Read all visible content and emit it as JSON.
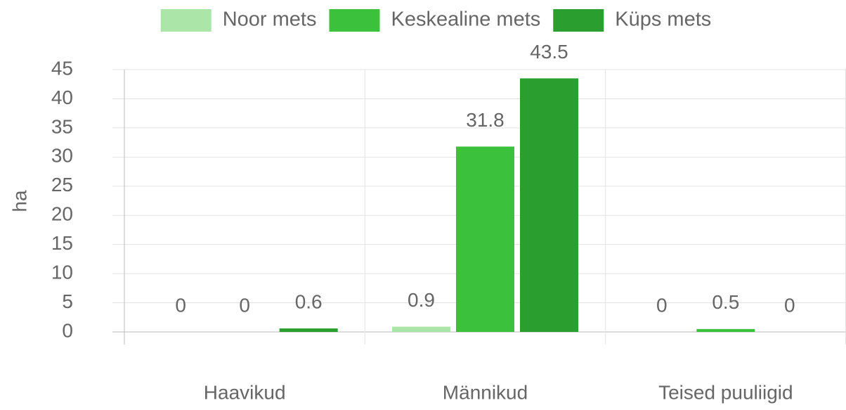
{
  "chart_data": {
    "type": "bar",
    "y_label": "ha",
    "categories": [
      "Haavikud",
      "Männikud",
      "Teised puuliigid"
    ],
    "series": [
      {
        "name": "Noor mets",
        "color": "#abe6a8",
        "values": [
          0,
          0.9,
          0
        ]
      },
      {
        "name": "Keskealine mets",
        "color": "#3cc13c",
        "values": [
          0,
          31.8,
          0.5
        ]
      },
      {
        "name": "Küps mets",
        "color": "#2a9e2e",
        "values": [
          0.6,
          43.5,
          0
        ]
      }
    ],
    "ylim": [
      0,
      45
    ],
    "yticks": [
      0,
      5,
      10,
      15,
      20,
      25,
      30,
      35,
      40,
      45
    ],
    "grid": true
  }
}
